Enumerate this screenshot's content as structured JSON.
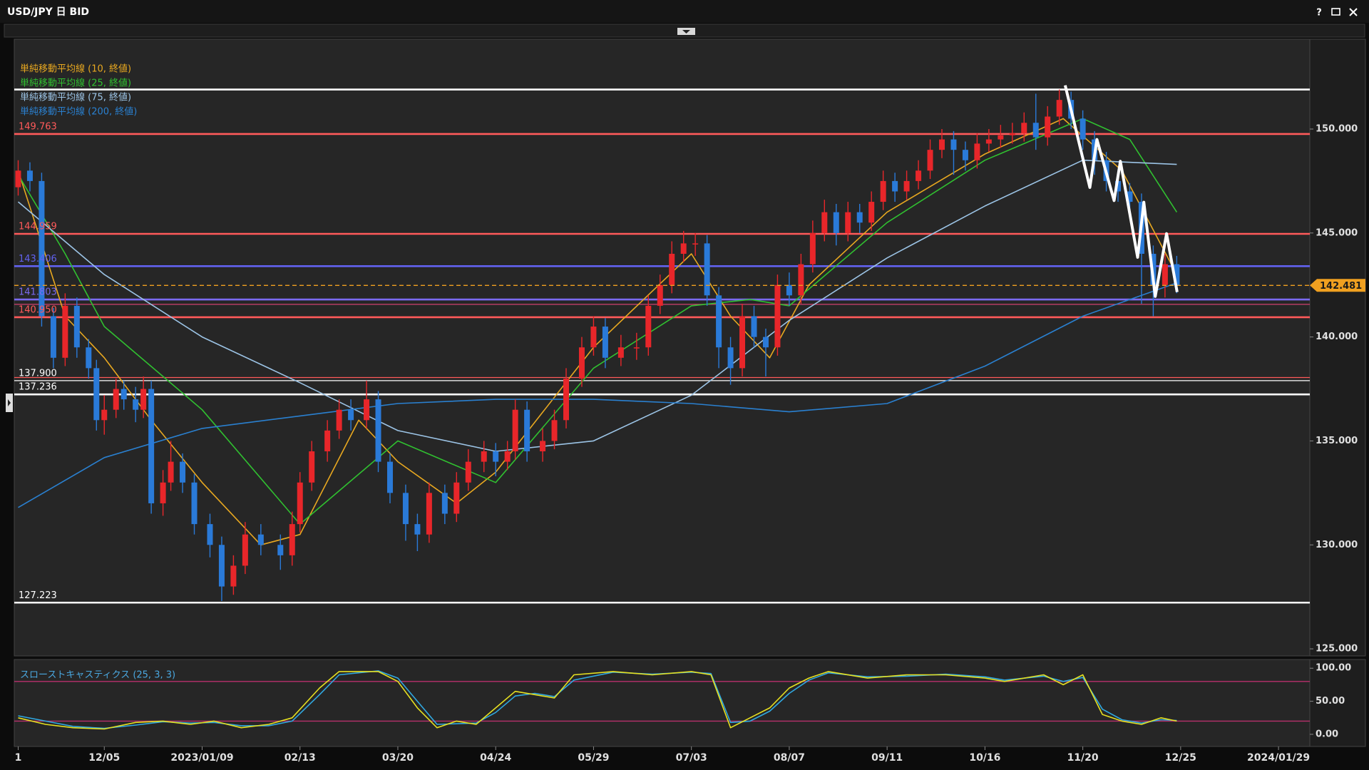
{
  "window": {
    "title": "USD/JPY 日 BID",
    "help": "?"
  },
  "chart_data": [
    {
      "type": "candlestick",
      "up_color": "#e8262a",
      "down_color": "#2a7ad8",
      "x": [
        -22,
        -19,
        -16,
        -13,
        -10,
        -7,
        -4,
        -2,
        0,
        3,
        5,
        8,
        10,
        12,
        15,
        17,
        20,
        23,
        27,
        30,
        33,
        36,
        40,
        45,
        48,
        50,
        53,
        57,
        60,
        63,
        67,
        70,
        73,
        77,
        80,
        83,
        87,
        90,
        93,
        97,
        100,
        103,
        105,
        108,
        112,
        115,
        118,
        122,
        125,
        128,
        132,
        136,
        139,
        142,
        145,
        148,
        151,
        154,
        157,
        160,
        163,
        166,
        169,
        172,
        175,
        178,
        181,
        184,
        187,
        190,
        193,
        196,
        199,
        202,
        205,
        208,
        211,
        214,
        217,
        220,
        223,
        226,
        229,
        232,
        235,
        238,
        241,
        244,
        247,
        250,
        253,
        256,
        259,
        262,
        265,
        268,
        271,
        274
      ],
      "open": [
        147.2,
        148,
        147.5,
        141,
        139,
        141.5,
        139.5,
        138.5,
        136,
        136.5,
        137.5,
        137,
        136.5,
        137.5,
        132,
        133,
        134,
        133,
        131,
        130,
        128,
        129,
        130.5,
        130,
        129.5,
        131,
        133,
        134.5,
        135.5,
        136.5,
        136,
        137,
        134,
        132.5,
        131,
        130.5,
        132.5,
        131.5,
        133,
        134,
        134.5,
        134,
        134.5,
        136.5,
        134.5,
        135,
        136,
        138,
        139.5,
        140.5,
        139,
        139.5,
        139.5,
        141.5,
        142.5,
        144,
        144.5,
        144.5,
        142,
        139.5,
        138.5,
        141,
        140,
        139.5,
        142.5,
        142,
        143.5,
        145,
        146,
        145,
        146,
        145.5,
        146.5,
        147.5,
        147,
        147.5,
        148,
        149,
        149.5,
        149,
        148.5,
        149.3,
        149.5,
        149.7,
        149.8,
        150.3,
        149.6,
        150.6,
        151.4,
        150.5,
        149.5,
        148.5,
        147.5,
        147,
        146.5,
        144,
        142.5,
        143.5
      ],
      "high": [
        148.5,
        148.4,
        147.9,
        141.4,
        142.1,
        141.9,
        139.9,
        138.9,
        137.2,
        138.0,
        137.9,
        137.6,
        138.1,
        137.9,
        133.6,
        135.0,
        134.4,
        133.4,
        131.5,
        130.4,
        129.5,
        131.1,
        131.0,
        130.5,
        131.6,
        133.5,
        135.0,
        136.0,
        137.0,
        137.0,
        137.9,
        137.4,
        134.4,
        132.9,
        131.5,
        133.0,
        132.9,
        133.5,
        134.6,
        135.0,
        134.9,
        135.0,
        137.0,
        136.9,
        135.6,
        136.5,
        138.5,
        140.0,
        141.0,
        140.9,
        140.1,
        140.2,
        142.0,
        143.0,
        144.6,
        145.1,
        145.0,
        144.9,
        142.4,
        140.0,
        141.6,
        141.5,
        140.4,
        143.0,
        143.1,
        144.0,
        145.6,
        146.6,
        146.4,
        146.5,
        146.4,
        147.0,
        148.0,
        147.9,
        148.0,
        148.5,
        149.5,
        150.0,
        149.9,
        149.4,
        149.8,
        150.0,
        150.2,
        150.3,
        150.8,
        151.7,
        151.1,
        151.9,
        151.8,
        150.9,
        149.9,
        148.9,
        148.0,
        147.4,
        146.9,
        144.4,
        144.0,
        143.9
      ],
      "low": [
        146.8,
        147.0,
        140.5,
        138.5,
        138.6,
        139.0,
        138.0,
        135.5,
        135.3,
        136.1,
        136.5,
        135.9,
        136.1,
        131.5,
        131.4,
        132.6,
        132.5,
        130.5,
        129.4,
        127.3,
        127.6,
        128.6,
        129.5,
        128.8,
        129.0,
        130.6,
        132.6,
        134.0,
        135.1,
        135.5,
        135.6,
        133.5,
        132.0,
        130.2,
        129.7,
        130.1,
        131.0,
        131.1,
        132.6,
        133.5,
        133.3,
        133.6,
        134.1,
        134.0,
        134.0,
        134.6,
        135.6,
        137.6,
        139.1,
        138.5,
        138.6,
        138.9,
        139.1,
        141.1,
        142.1,
        143.6,
        143.9,
        141.5,
        138.5,
        137.7,
        138.1,
        139.5,
        138.1,
        139.1,
        141.5,
        141.6,
        143.1,
        144.6,
        144.4,
        144.6,
        145.0,
        145.1,
        146.1,
        146.5,
        146.6,
        147.1,
        147.6,
        148.6,
        147.8,
        148.0,
        148.1,
        148.9,
        149.1,
        149.3,
        149.4,
        149.0,
        149.2,
        150.2,
        150.0,
        149.0,
        147.8,
        147.0,
        146.5,
        145.9,
        141.6,
        141.0,
        141.9,
        142.1
      ],
      "close": [
        148,
        147.5,
        141,
        139,
        141.5,
        139.5,
        138.5,
        136,
        136.5,
        137.5,
        137,
        136.5,
        137.5,
        132,
        133,
        134,
        133,
        131,
        130,
        128,
        129,
        130.5,
        130,
        129.5,
        131,
        133,
        134.5,
        135.5,
        136.5,
        136,
        137,
        134,
        132.5,
        131,
        130.5,
        132.5,
        131.5,
        133,
        134,
        134.5,
        134,
        134.5,
        136.5,
        134.5,
        135,
        136,
        138,
        139.5,
        140.5,
        139,
        139.5,
        139.5,
        141.5,
        142.5,
        144,
        144.5,
        144.5,
        142,
        139.5,
        138.5,
        141,
        140,
        139.5,
        142.5,
        142,
        143.5,
        145,
        146,
        145,
        146,
        145.5,
        146.5,
        147.5,
        147,
        147.5,
        148,
        149,
        149.5,
        149,
        148.5,
        149.3,
        149.5,
        149.7,
        149.8,
        150.3,
        149.6,
        150.6,
        151.4,
        150.5,
        149.5,
        148.5,
        147.5,
        147,
        146.5,
        144,
        142.5,
        143.5,
        142.481
      ],
      "xlim": [
        -23,
        308
      ],
      "xticks": [
        {
          "value": -22,
          "label": "1"
        },
        {
          "value": 0,
          "label": "12/05"
        },
        {
          "value": 25,
          "label": "2023/01/09"
        },
        {
          "value": 50,
          "label": "02/13"
        },
        {
          "value": 75,
          "label": "03/20"
        },
        {
          "value": 100,
          "label": "04/24"
        },
        {
          "value": 125,
          "label": "05/29"
        },
        {
          "value": 150,
          "label": "07/03"
        },
        {
          "value": 175,
          "label": "08/07"
        },
        {
          "value": 200,
          "label": "09/11"
        },
        {
          "value": 225,
          "label": "10/16"
        },
        {
          "value": 250,
          "label": "11/20"
        },
        {
          "value": 275,
          "label": "12/25"
        },
        {
          "value": 300,
          "label": "2024/01/29"
        }
      ],
      "ylim": [
        124.66,
        154.32
      ],
      "yticks": [
        {
          "value": 125,
          "label": "125.000"
        },
        {
          "value": 130,
          "label": "130.000"
        },
        {
          "value": 135,
          "label": "135.000"
        },
        {
          "value": 140,
          "label": "140.000"
        },
        {
          "value": 145,
          "label": "145.000"
        },
        {
          "value": 150,
          "label": "150.000"
        }
      ],
      "series": [
        {
          "name": "単純移動平均線 (10, 終値)",
          "color": "#e8a820",
          "x": [
            -22,
            -10,
            0,
            12,
            25,
            40,
            50,
            65,
            75,
            90,
            100,
            125,
            150,
            160,
            170,
            180,
            200,
            225,
            245,
            260,
            274
          ],
          "values": [
            148,
            141,
            139,
            136,
            133,
            130,
            130.5,
            136,
            134,
            132,
            133.5,
            139.5,
            144,
            141,
            139,
            142.5,
            146,
            148.8,
            150.5,
            148,
            143
          ]
        },
        {
          "name": "単純移動平均線 (25, 終値)",
          "color": "#30c030",
          "x": [
            -22,
            -10,
            0,
            25,
            50,
            75,
            100,
            125,
            150,
            165,
            175,
            200,
            225,
            250,
            262,
            274
          ],
          "values": [
            147.8,
            144,
            140.5,
            136.5,
            131,
            135,
            133,
            138.5,
            141.5,
            141.8,
            141.5,
            145.5,
            148.5,
            150.5,
            149.5,
            146
          ]
        },
        {
          "name": "単純移動平均線 (75, 終値)",
          "color": "#9cc4e6",
          "x": [
            -22,
            0,
            25,
            50,
            75,
            100,
            125,
            150,
            175,
            200,
            225,
            250,
            274
          ],
          "values": [
            146.5,
            143,
            140,
            137.8,
            135.5,
            134.5,
            135,
            137.2,
            140.8,
            143.8,
            146.3,
            148.5,
            148.3
          ]
        },
        {
          "name": "単純移動平均線 (200, 終値)",
          "color": "#2a80d0",
          "x": [
            -22,
            0,
            25,
            50,
            75,
            100,
            125,
            150,
            175,
            200,
            225,
            250,
            274
          ],
          "values": [
            131.8,
            134.2,
            135.6,
            136.2,
            136.8,
            137,
            137,
            136.8,
            136.4,
            136.8,
            138.6,
            141,
            142.6
          ]
        }
      ],
      "levels": [
        {
          "value": 151.9,
          "color": "#ffffff"
        },
        {
          "value": 149.763,
          "label": "149.763",
          "color": "#ff5a5a"
        },
        {
          "value": 144.959,
          "label": "144.959",
          "color": "#ff5a5a"
        },
        {
          "value": 143.406,
          "label": "143.406",
          "color": "#6262f0"
        },
        {
          "value": 141.803,
          "label": "141.803",
          "color": "#7a6af0"
        },
        {
          "value": 141.57,
          "color": "#d04070",
          "style": "thin"
        },
        {
          "value": 140.95,
          "label": "140.950",
          "color": "#ff5a5a"
        },
        {
          "value": 138.05,
          "color": "#ff5a5a",
          "style": "thin"
        },
        {
          "value": 137.9,
          "label": "137.900",
          "color": "#ffffff",
          "style": "thin"
        },
        {
          "value": 137.236,
          "label": "137.236",
          "color": "#ffffff"
        },
        {
          "value": 127.223,
          "label": "127.223",
          "color": "#ffffff"
        }
      ],
      "last_price": {
        "value": 142.481,
        "label": "142.481",
        "color": "#f0a020"
      },
      "drawing": {
        "color": "#ffffff",
        "x": [
          245.5,
          251.8,
          253.6,
          258,
          259.6,
          264,
          265.6,
          268.5,
          271.4,
          274.1
        ],
        "y": [
          152.1,
          147.19,
          149.5,
          146.56,
          148.45,
          143.83,
          146.48,
          141.95,
          144.97,
          142.16
        ]
      }
    },
    {
      "type": "line",
      "title": "スローストキャスティクス (25, 3, 3)",
      "ylim": [
        -18.4,
        113.2
      ],
      "yticks": [
        {
          "value": 0,
          "label": "0.00"
        },
        {
          "value": 50,
          "label": "50.00"
        },
        {
          "value": 100,
          "label": "100.00"
        }
      ],
      "levels": [
        {
          "value": 80,
          "color": "#b8306c"
        },
        {
          "value": 20,
          "color": "#b8306c"
        }
      ],
      "x": [
        -22,
        -15,
        -8,
        0,
        8,
        15,
        22,
        28,
        35,
        42,
        48,
        55,
        60,
        70,
        75,
        80,
        85,
        90,
        95,
        100,
        105,
        110,
        115,
        120,
        130,
        140,
        150,
        155,
        160,
        165,
        170,
        175,
        180,
        185,
        195,
        205,
        215,
        225,
        230,
        240,
        245,
        250,
        255,
        260,
        265,
        270,
        274
      ],
      "series": [
        {
          "color": "#30a8e0",
          "values": [
            28,
            20,
            12,
            9,
            14,
            19,
            17,
            18,
            13,
            13,
            20,
            60,
            90,
            96,
            85,
            50,
            15,
            16,
            17,
            33,
            58,
            62,
            57,
            82,
            94,
            91,
            94,
            92,
            18,
            20,
            35,
            62,
            82,
            93,
            87,
            88,
            91,
            87,
            82,
            88,
            80,
            86,
            38,
            22,
            17,
            22,
            21
          ]
        },
        {
          "color": "#e6e020",
          "values": [
            25,
            15,
            10,
            8,
            18,
            20,
            15,
            20,
            10,
            15,
            25,
            70,
            95,
            95,
            80,
            40,
            10,
            20,
            15,
            40,
            65,
            60,
            55,
            90,
            95,
            90,
            95,
            90,
            10,
            25,
            40,
            70,
            85,
            95,
            85,
            90,
            90,
            85,
            80,
            90,
            75,
            90,
            30,
            20,
            15,
            25,
            20
          ]
        }
      ]
    }
  ]
}
